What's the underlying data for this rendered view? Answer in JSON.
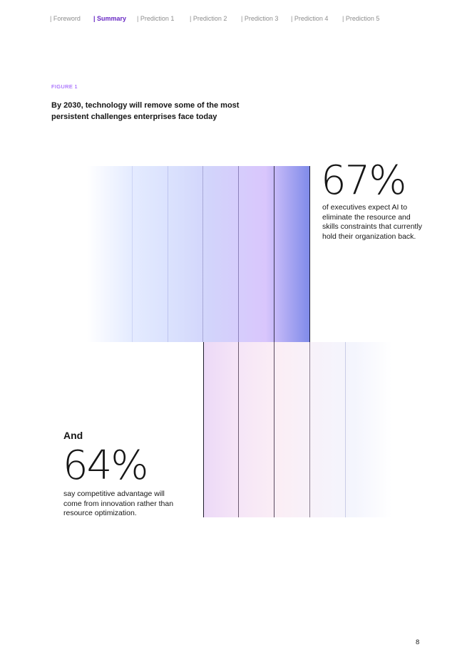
{
  "nav": {
    "items": [
      {
        "label": "| Foreword"
      },
      {
        "label": "| Summary",
        "active": true
      },
      {
        "label": "| Prediction 1"
      },
      {
        "label": "| Prediction 2"
      },
      {
        "label": "| Prediction 3"
      },
      {
        "label": "| Prediction 4"
      },
      {
        "label": "| Prediction 5"
      }
    ]
  },
  "figure": {
    "label": "FIGURE 1",
    "title": "By 2030, technology will remove some of the most persistent challenges enterprises face today"
  },
  "stat1": {
    "value": "67%",
    "description": "of executives expect AI to eliminate the resource and skills constraints that currently hold their organization back."
  },
  "stat2": {
    "intro": "And",
    "value": "64%",
    "description": "say competitive advantage will come from innovation rather than resource optimization."
  },
  "page_number": "8",
  "colors": {
    "accent": "#6929c4",
    "figure_label": "#8a3ffc",
    "gradient_top_end": "#7e8ae9",
    "gradient_bottom_start": "#ecd9f7"
  }
}
